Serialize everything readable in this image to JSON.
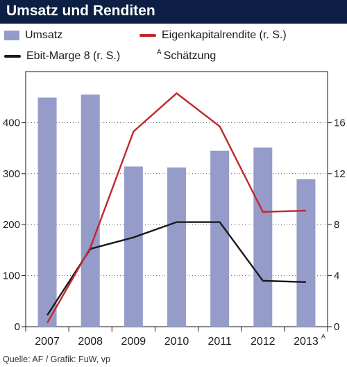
{
  "header": {
    "title": "Umsatz und Renditen"
  },
  "legend": {
    "bars_label": "Umsatz",
    "ebit_label": "Ebit-Marge 8 (r. S.)",
    "ek_label": "Eigenkapitalrendite (r. S.)",
    "note_mark": "A",
    "note_label": "Schätzung"
  },
  "footer": {
    "source": "Quelle: AF / Grafik: FuW, vp"
  },
  "colors": {
    "title_bg": "#0d1f44",
    "bars": "#959cc9",
    "ebit_line": "#1a1a1a",
    "ek_line": "#c1272d"
  },
  "chart_data": {
    "type": "bar",
    "categories": [
      "2007",
      "2008",
      "2009",
      "2010",
      "2011",
      "2012",
      "2013"
    ],
    "category_marks": [
      "",
      "",
      "",
      "",
      "",
      "",
      "A"
    ],
    "series": [
      {
        "name": "Umsatz",
        "type": "bar",
        "axis": "left",
        "values": [
          449,
          455,
          314,
          312,
          345,
          351,
          289
        ]
      },
      {
        "name": "Ebit-Marge 8 (r. S.)",
        "type": "line",
        "axis": "right",
        "values": [
          0.9,
          6.1,
          7.0,
          8.2,
          8.2,
          3.6,
          3.5
        ]
      },
      {
        "name": "Eigenkapitalrendite (r. S.)",
        "type": "line",
        "axis": "right",
        "values": [
          0.3,
          6.2,
          15.3,
          18.3,
          15.7,
          9.0,
          9.1
        ]
      }
    ],
    "y_left": {
      "min": 0,
      "max": 500,
      "ticks": [
        0,
        100,
        200,
        300,
        400
      ]
    },
    "y_right": {
      "min": 0,
      "max": 20,
      "ticks": [
        0,
        4,
        8,
        12,
        16
      ]
    },
    "grid": "dotted horizontal"
  }
}
